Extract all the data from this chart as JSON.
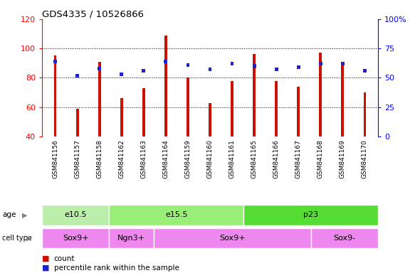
{
  "title": "GDS4335 / 10526866",
  "samples": [
    "GSM841156",
    "GSM841157",
    "GSM841158",
    "GSM841162",
    "GSM841163",
    "GSM841164",
    "GSM841159",
    "GSM841160",
    "GSM841161",
    "GSM841165",
    "GSM841166",
    "GSM841167",
    "GSM841168",
    "GSM841169",
    "GSM841170"
  ],
  "red_values": [
    95,
    59,
    91,
    66,
    73,
    109,
    80,
    63,
    78,
    96,
    78,
    74,
    97,
    90,
    70
  ],
  "blue_values": [
    64,
    52,
    58,
    53,
    56,
    64,
    61,
    57,
    62,
    60,
    57,
    59,
    62,
    62,
    56
  ],
  "ylim_left": [
    40,
    120
  ],
  "ylim_right": [
    0,
    100
  ],
  "yticks_left": [
    40,
    60,
    80,
    100,
    120
  ],
  "yticks_right": [
    0,
    25,
    50,
    75,
    100
  ],
  "ytick_labels_right": [
    "0",
    "25",
    "50",
    "75",
    "100%"
  ],
  "age_groups": [
    {
      "label": "e10.5",
      "start": 0,
      "end": 3,
      "color": "#bbeeaa"
    },
    {
      "label": "e15.5",
      "start": 3,
      "end": 9,
      "color": "#99ee77"
    },
    {
      "label": "p23",
      "start": 9,
      "end": 15,
      "color": "#55dd33"
    }
  ],
  "cell_type_borders": [
    0,
    3,
    5,
    12,
    15
  ],
  "cell_type_labels": [
    "Sox9+",
    "Ngn3+",
    "Sox9+",
    "Sox9-"
  ],
  "cell_type_color": "#ee88ee",
  "bar_color": "#cc1100",
  "blue_color": "#2222cc",
  "xtick_bg": "#cccccc",
  "plot_bg": "#ffffff",
  "bar_width": 0.12
}
